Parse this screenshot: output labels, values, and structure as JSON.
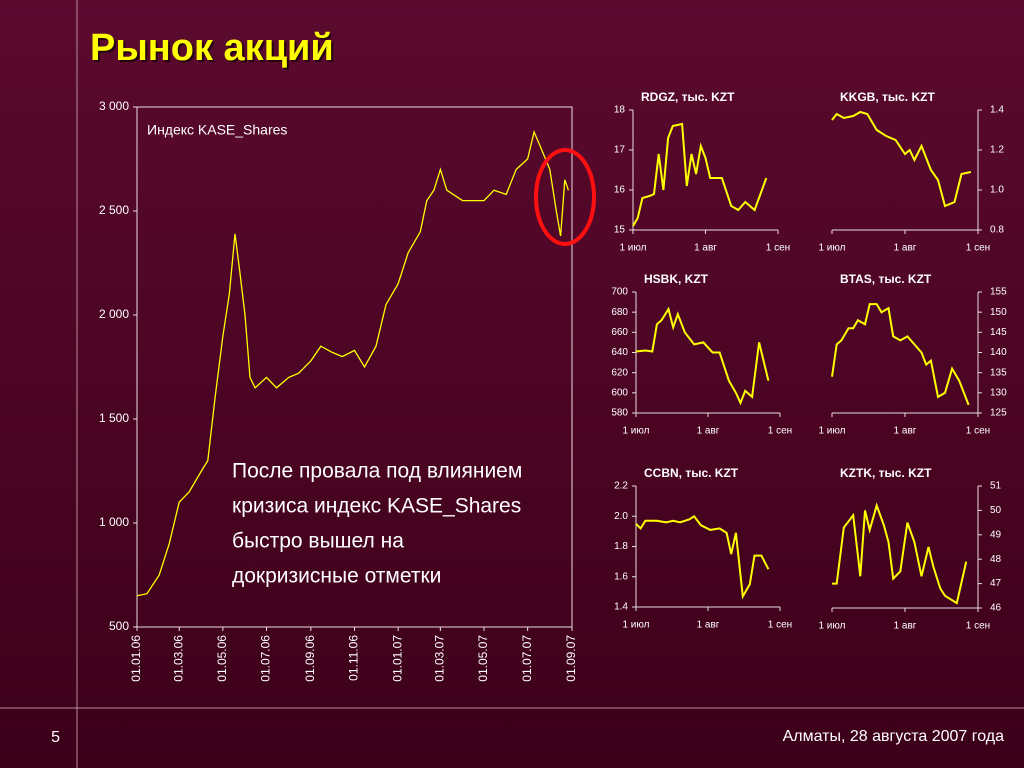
{
  "title": "Рынок акций",
  "page_number": "5",
  "footer": "Алматы, 28 августа 2007 года",
  "chart_data": [
    {
      "type": "line",
      "annotation": [
        "После провала под влиянием",
        "кризиса индекс KASE_Shares",
        "быстро вышел на",
        "докризисные отметки"
      ],
      "x": [
        "2006-01-01",
        "2006-01-15",
        "2006-02-01",
        "2006-02-15",
        "2006-03-01",
        "2006-03-15",
        "2006-04-01",
        "2006-04-10",
        "2006-04-20",
        "2006-05-01",
        "2006-05-10",
        "2006-05-18",
        "2006-05-25",
        "2006-06-01",
        "2006-06-08",
        "2006-06-15",
        "2006-07-01",
        "2006-07-15",
        "2006-08-01",
        "2006-08-15",
        "2006-09-01",
        "2006-09-15",
        "2006-10-01",
        "2006-10-15",
        "2006-11-01",
        "2006-11-15",
        "2006-12-01",
        "2006-12-15",
        "2007-01-01",
        "2007-01-15",
        "2007-02-01",
        "2007-02-10",
        "2007-02-20",
        "2007-03-01",
        "2007-03-10",
        "2007-04-01",
        "2007-05-01",
        "2007-05-15",
        "2007-06-01",
        "2007-06-15",
        "2007-07-01",
        "2007-07-10",
        "2007-07-20",
        "2007-08-01",
        "2007-08-10",
        "2007-08-16",
        "2007-08-22",
        "2007-08-27"
      ],
      "series": [
        {
          "name": "Индекс KASE_Shares",
          "color": "#ffff00",
          "values": [
            650,
            660,
            750,
            900,
            1100,
            1150,
            1250,
            1300,
            1600,
            1900,
            2100,
            2390,
            2200,
            2000,
            1700,
            1650,
            1700,
            1650,
            1700,
            1720,
            1780,
            1850,
            1820,
            1800,
            1830,
            1750,
            1850,
            2050,
            2150,
            2300,
            2400,
            2550,
            2600,
            2700,
            2600,
            2550,
            2550,
            2600,
            2580,
            2700,
            2750,
            2880,
            2800,
            2700,
            2500,
            2380,
            2650,
            2600
          ]
        }
      ],
      "xlim": [
        "2006-01-01",
        "2007-09-01"
      ],
      "xticks": [
        {
          "value": "2006-01-01",
          "label": "01.01.06"
        },
        {
          "value": "2006-03-01",
          "label": "01.03.06"
        },
        {
          "value": "2006-05-01",
          "label": "01.05.06"
        },
        {
          "value": "2006-07-01",
          "label": "01.07.06"
        },
        {
          "value": "2006-09-01",
          "label": "01.09.06"
        },
        {
          "value": "2006-11-01",
          "label": "01.11.06"
        },
        {
          "value": "2007-01-01",
          "label": "01.01.07"
        },
        {
          "value": "2007-03-01",
          "label": "01.03.07"
        },
        {
          "value": "2007-05-01",
          "label": "01.05.07"
        },
        {
          "value": "2007-07-01",
          "label": "01.07.07"
        },
        {
          "value": "2007-09-01",
          "label": "01.09.07"
        }
      ],
      "ylim": [
        500,
        3000
      ],
      "yticks": [
        500,
        {
          "value": 1000,
          "label": "1 000"
        },
        {
          "value": 1500,
          "label": "1 500"
        },
        {
          "value": 2000,
          "label": "2 000"
        },
        {
          "value": 2500,
          "label": "2 500"
        },
        {
          "value": 3000,
          "label": "3 000"
        }
      ],
      "y_axis_side": "left"
    },
    {
      "type": "line",
      "title": "RDGZ, тыс. KZT",
      "x": [
        "2007-07-01",
        "2007-07-03",
        "2007-07-05",
        "2007-07-08",
        "2007-07-10",
        "2007-07-12",
        "2007-07-14",
        "2007-07-16",
        "2007-07-18",
        "2007-07-22",
        "2007-07-24",
        "2007-07-26",
        "2007-07-28",
        "2007-07-30",
        "2007-08-01",
        "2007-08-03",
        "2007-08-08",
        "2007-08-12",
        "2007-08-15",
        "2007-08-18",
        "2007-08-22",
        "2007-08-27"
      ],
      "series": [
        {
          "color": "#ffff00",
          "values": [
            15.1,
            15.3,
            15.8,
            15.85,
            15.9,
            16.9,
            16.0,
            17.3,
            17.6,
            17.65,
            16.1,
            16.9,
            16.4,
            17.1,
            16.8,
            16.3,
            16.3,
            15.6,
            15.5,
            15.7,
            15.5,
            16.3
          ]
        }
      ],
      "xlim": [
        "2007-07-01",
        "2007-09-01"
      ],
      "xticks": [
        {
          "value": "2007-07-01",
          "label": "1 июл"
        },
        {
          "value": "2007-08-01",
          "label": "1 авг"
        },
        {
          "value": "2007-09-01",
          "label": "1 сен"
        }
      ],
      "ylim": [
        15,
        18
      ],
      "yticks": [
        15,
        16,
        17,
        18
      ],
      "y_axis_side": "left"
    },
    {
      "type": "line",
      "title": "KKGB, тыс. KZT",
      "x": [
        "2007-07-01",
        "2007-07-03",
        "2007-07-06",
        "2007-07-10",
        "2007-07-13",
        "2007-07-16",
        "2007-07-20",
        "2007-07-24",
        "2007-07-28",
        "2007-08-01",
        "2007-08-03",
        "2007-08-05",
        "2007-08-08",
        "2007-08-12",
        "2007-08-15",
        "2007-08-18",
        "2007-08-22",
        "2007-08-25",
        "2007-08-29"
      ],
      "series": [
        {
          "color": "#ffff00",
          "values": [
            1.35,
            1.38,
            1.36,
            1.37,
            1.39,
            1.38,
            1.3,
            1.27,
            1.25,
            1.18,
            1.2,
            1.15,
            1.22,
            1.1,
            1.05,
            0.92,
            0.94,
            1.08,
            1.09
          ]
        }
      ],
      "xlim": [
        "2007-07-01",
        "2007-09-01"
      ],
      "xticks": [
        {
          "value": "2007-07-01",
          "label": "1 июл"
        },
        {
          "value": "2007-08-01",
          "label": "1 авг"
        },
        {
          "value": "2007-09-01",
          "label": "1 сен"
        }
      ],
      "ylim": [
        0.8,
        1.4
      ],
      "yticks": [
        0.8,
        {
          "value": 1,
          "label": "1.0"
        },
        1.2,
        1.4
      ],
      "y_axis_side": "right"
    },
    {
      "type": "line",
      "title": "HSBK, KZT",
      "x": [
        "2007-07-01",
        "2007-07-05",
        "2007-07-08",
        "2007-07-10",
        "2007-07-12",
        "2007-07-15",
        "2007-07-17",
        "2007-07-19",
        "2007-07-22",
        "2007-07-26",
        "2007-07-30",
        "2007-08-03",
        "2007-08-06",
        "2007-08-10",
        "2007-08-13",
        "2007-08-15",
        "2007-08-17",
        "2007-08-20",
        "2007-08-23",
        "2007-08-27"
      ],
      "series": [
        {
          "color": "#ffff00",
          "values": [
            641,
            642,
            641,
            668,
            672,
            683,
            665,
            678,
            660,
            648,
            650,
            640,
            640,
            612,
            600,
            590,
            602,
            596,
            650,
            612
          ]
        }
      ],
      "xlim": [
        "2007-07-01",
        "2007-09-01"
      ],
      "xticks": [
        {
          "value": "2007-07-01",
          "label": "1 июл"
        },
        {
          "value": "2007-08-01",
          "label": "1 авг"
        },
        {
          "value": "2007-09-01",
          "label": "1 сен"
        }
      ],
      "ylim": [
        580,
        700
      ],
      "yticks": [
        580,
        600,
        620,
        640,
        660,
        680,
        700
      ],
      "y_axis_side": "left"
    },
    {
      "type": "line",
      "title": "BTAS, тыс. KZT",
      "x": [
        "2007-07-01",
        "2007-07-03",
        "2007-07-05",
        "2007-07-08",
        "2007-07-10",
        "2007-07-12",
        "2007-07-15",
        "2007-07-17",
        "2007-07-20",
        "2007-07-22",
        "2007-07-25",
        "2007-07-27",
        "2007-07-30",
        "2007-08-02",
        "2007-08-05",
        "2007-08-08",
        "2007-08-10",
        "2007-08-12",
        "2007-08-15",
        "2007-08-18",
        "2007-08-21",
        "2007-08-24",
        "2007-08-28"
      ],
      "series": [
        {
          "color": "#ffff00",
          "values": [
            134,
            142,
            143,
            146,
            146,
            148,
            147,
            152,
            152,
            150,
            151,
            144,
            143,
            144,
            142,
            140,
            137,
            138,
            129,
            130,
            136,
            133,
            127
          ]
        }
      ],
      "xlim": [
        "2007-07-01",
        "2007-09-01"
      ],
      "xticks": [
        {
          "value": "2007-07-01",
          "label": "1 июл"
        },
        {
          "value": "2007-08-01",
          "label": "1 авг"
        },
        {
          "value": "2007-09-01",
          "label": "1 сен"
        }
      ],
      "ylim": [
        125,
        155
      ],
      "yticks": [
        125,
        130,
        135,
        140,
        145,
        150,
        155
      ],
      "y_axis_side": "right"
    },
    {
      "type": "line",
      "title": "CCBN, тыс. KZT",
      "x": [
        "2007-07-01",
        "2007-07-03",
        "2007-07-05",
        "2007-07-10",
        "2007-07-14",
        "2007-07-17",
        "2007-07-20",
        "2007-07-24",
        "2007-07-26",
        "2007-07-29",
        "2007-08-02",
        "2007-08-06",
        "2007-08-09",
        "2007-08-11",
        "2007-08-13",
        "2007-08-16",
        "2007-08-19",
        "2007-08-21",
        "2007-08-24",
        "2007-08-27"
      ],
      "series": [
        {
          "color": "#ffff00",
          "values": [
            1.95,
            1.92,
            1.97,
            1.97,
            1.96,
            1.97,
            1.96,
            1.98,
            2.0,
            1.94,
            1.91,
            1.92,
            1.89,
            1.75,
            1.89,
            1.47,
            1.55,
            1.74,
            1.74,
            1.65
          ]
        }
      ],
      "xlim": [
        "2007-07-01",
        "2007-09-01"
      ],
      "xticks": [
        {
          "value": "2007-07-01",
          "label": "1 июл"
        },
        {
          "value": "2007-08-01",
          "label": "1 авг"
        },
        {
          "value": "2007-09-01",
          "label": "1 сен"
        }
      ],
      "ylim": [
        1.4,
        2.2
      ],
      "yticks": [
        1.4,
        1.6,
        1.8,
        {
          "value": 2,
          "label": "2.0"
        },
        2.2
      ],
      "y_axis_side": "left"
    },
    {
      "type": "line",
      "title": "KZTK, тыс. KZT",
      "x": [
        "2007-07-01",
        "2007-07-03",
        "2007-07-06",
        "2007-07-10",
        "2007-07-13",
        "2007-07-15",
        "2007-07-17",
        "2007-07-20",
        "2007-07-23",
        "2007-07-25",
        "2007-07-27",
        "2007-07-30",
        "2007-08-02",
        "2007-08-05",
        "2007-08-08",
        "2007-08-11",
        "2007-08-13",
        "2007-08-16",
        "2007-08-18",
        "2007-08-23",
        "2007-08-27"
      ],
      "series": [
        {
          "color": "#ffff00",
          "values": [
            47,
            47,
            49.3,
            49.8,
            47.3,
            50,
            49.2,
            50.2,
            49.4,
            48.7,
            47.2,
            47.5,
            49.5,
            48.7,
            47.3,
            48.5,
            47.7,
            46.8,
            46.5,
            46.2,
            47.9
          ]
        }
      ],
      "xlim": [
        "2007-07-01",
        "2007-09-01"
      ],
      "xticks": [
        {
          "value": "2007-07-01",
          "label": "1 июл"
        },
        {
          "value": "2007-08-01",
          "label": "1 авг"
        },
        {
          "value": "2007-09-01",
          "label": "1 сен"
        }
      ],
      "ylim": [
        46,
        51
      ],
      "yticks": [
        46,
        47,
        48,
        49,
        50,
        51
      ],
      "y_axis_side": "right"
    }
  ]
}
